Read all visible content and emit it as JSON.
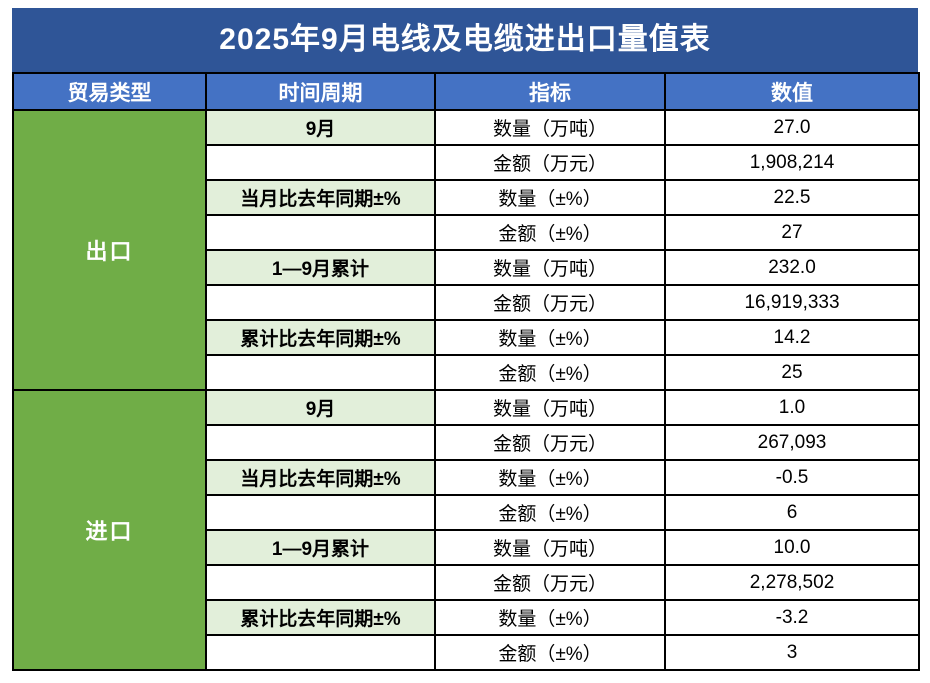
{
  "title": "2025年9月电线及电缆进出口量值表",
  "headers": {
    "trade_type": "贸易类型",
    "period": "时间周期",
    "indicator": "指标",
    "value": "数值"
  },
  "colors": {
    "title_bg": "#2F5597",
    "header_bg": "#4472C4",
    "trade_type_bg": "#70AD47",
    "period_label_bg": "#E2EFDA",
    "border": "#000000",
    "header_text": "#ffffff",
    "body_text": "#000000"
  },
  "sections": [
    {
      "trade_type": "出口",
      "rows": [
        {
          "period": "9月",
          "indicator": "数量（万吨）",
          "value": "27.0"
        },
        {
          "period": "",
          "indicator": "金额（万元）",
          "value": "1,908,214"
        },
        {
          "period": "当月比去年同期±%",
          "indicator": "数量（±%）",
          "value": "22.5"
        },
        {
          "period": "",
          "indicator": "金额（±%）",
          "value": "27"
        },
        {
          "period": "1—9月累计",
          "indicator": "数量（万吨）",
          "value": "232.0"
        },
        {
          "period": "",
          "indicator": "金额（万元）",
          "value": "16,919,333"
        },
        {
          "period": "累计比去年同期±%",
          "indicator": "数量（±%）",
          "value": "14.2"
        },
        {
          "period": "",
          "indicator": "金额（±%）",
          "value": "25"
        }
      ]
    },
    {
      "trade_type": "进口",
      "rows": [
        {
          "period": "9月",
          "indicator": "数量（万吨）",
          "value": "1.0"
        },
        {
          "period": "",
          "indicator": "金额（万元）",
          "value": "267,093"
        },
        {
          "period": "当月比去年同期±%",
          "indicator": "数量（±%）",
          "value": "-0.5"
        },
        {
          "period": "",
          "indicator": "金额（±%）",
          "value": "6"
        },
        {
          "period": "1—9月累计",
          "indicator": "数量（万吨）",
          "value": "10.0"
        },
        {
          "period": "",
          "indicator": "金额（万元）",
          "value": "2,278,502"
        },
        {
          "period": "累计比去年同期±%",
          "indicator": "数量（±%）",
          "value": "-3.2"
        },
        {
          "period": "",
          "indicator": "金额（±%）",
          "value": "3"
        }
      ]
    }
  ],
  "chart_data": {
    "type": "table",
    "title": "2025年9月电线及电缆进出口量值表",
    "columns": [
      "贸易类型",
      "时间周期",
      "指标",
      "数值"
    ],
    "rows": [
      [
        "出口",
        "9月",
        "数量（万吨）",
        "27.0"
      ],
      [
        "出口",
        "9月",
        "金额（万元）",
        "1,908,214"
      ],
      [
        "出口",
        "当月比去年同期±%",
        "数量（±%）",
        "22.5"
      ],
      [
        "出口",
        "当月比去年同期±%",
        "金额（±%）",
        "27"
      ],
      [
        "出口",
        "1—9月累计",
        "数量（万吨）",
        "232.0"
      ],
      [
        "出口",
        "1—9月累计",
        "金额（万元）",
        "16,919,333"
      ],
      [
        "出口",
        "累计比去年同期±%",
        "数量（±%）",
        "14.2"
      ],
      [
        "出口",
        "累计比去年同期±%",
        "金额（±%）",
        "25"
      ],
      [
        "进口",
        "9月",
        "数量（万吨）",
        "1.0"
      ],
      [
        "进口",
        "9月",
        "金额（万元）",
        "267,093"
      ],
      [
        "进口",
        "当月比去年同期±%",
        "数量（±%）",
        "-0.5"
      ],
      [
        "进口",
        "当月比去年同期±%",
        "金额（±%）",
        "6"
      ],
      [
        "进口",
        "1—9月累计",
        "数量（万吨）",
        "10.0"
      ],
      [
        "进口",
        "1—9月累计",
        "金额（万元）",
        "2,278,502"
      ],
      [
        "进口",
        "累计比去年同期±%",
        "数量（±%）",
        "-3.2"
      ],
      [
        "进口",
        "累计比去年同期±%",
        "金额（±%）",
        "3"
      ]
    ]
  }
}
